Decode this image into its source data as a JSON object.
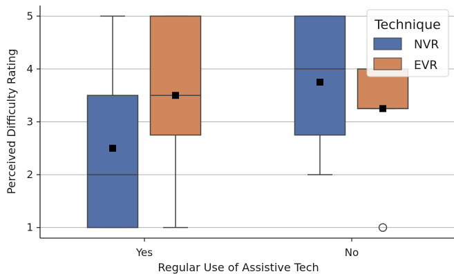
{
  "chart_data": {
    "type": "box",
    "xlabel": "Regular Use of Assistive Tech",
    "ylabel": "Perceived Difficulty Rating",
    "categories": [
      "Yes",
      "No"
    ],
    "ylim": [
      0.8,
      5.2
    ],
    "yticks": [
      1,
      2,
      3,
      4,
      5
    ],
    "grid": "horizontal",
    "legend": {
      "title": "Technique",
      "placement": "top-right",
      "entries": [
        "NVR",
        "EVR"
      ]
    },
    "series": [
      {
        "name": "NVR",
        "color": "#5470a8",
        "boxes": [
          {
            "whisker_low": 1,
            "q1": 1,
            "median": 2,
            "q3": 3.5,
            "whisker_high": 5,
            "mean": 2.5,
            "outliers": []
          },
          {
            "whisker_low": 2,
            "q1": 2.75,
            "median": 4,
            "q3": 5,
            "whisker_high": 5,
            "mean": 3.75,
            "outliers": []
          }
        ]
      },
      {
        "name": "EVR",
        "color": "#d1875c",
        "boxes": [
          {
            "whisker_low": 1,
            "q1": 2.75,
            "median": 3.5,
            "q3": 5,
            "whisker_high": 5,
            "mean": 3.5,
            "outliers": []
          },
          {
            "whisker_low": 3.25,
            "q1": 3.25,
            "median": 3.25,
            "q3": 4,
            "whisker_high": 4,
            "mean": 3.25,
            "outliers": [
              1
            ]
          }
        ]
      }
    ]
  }
}
